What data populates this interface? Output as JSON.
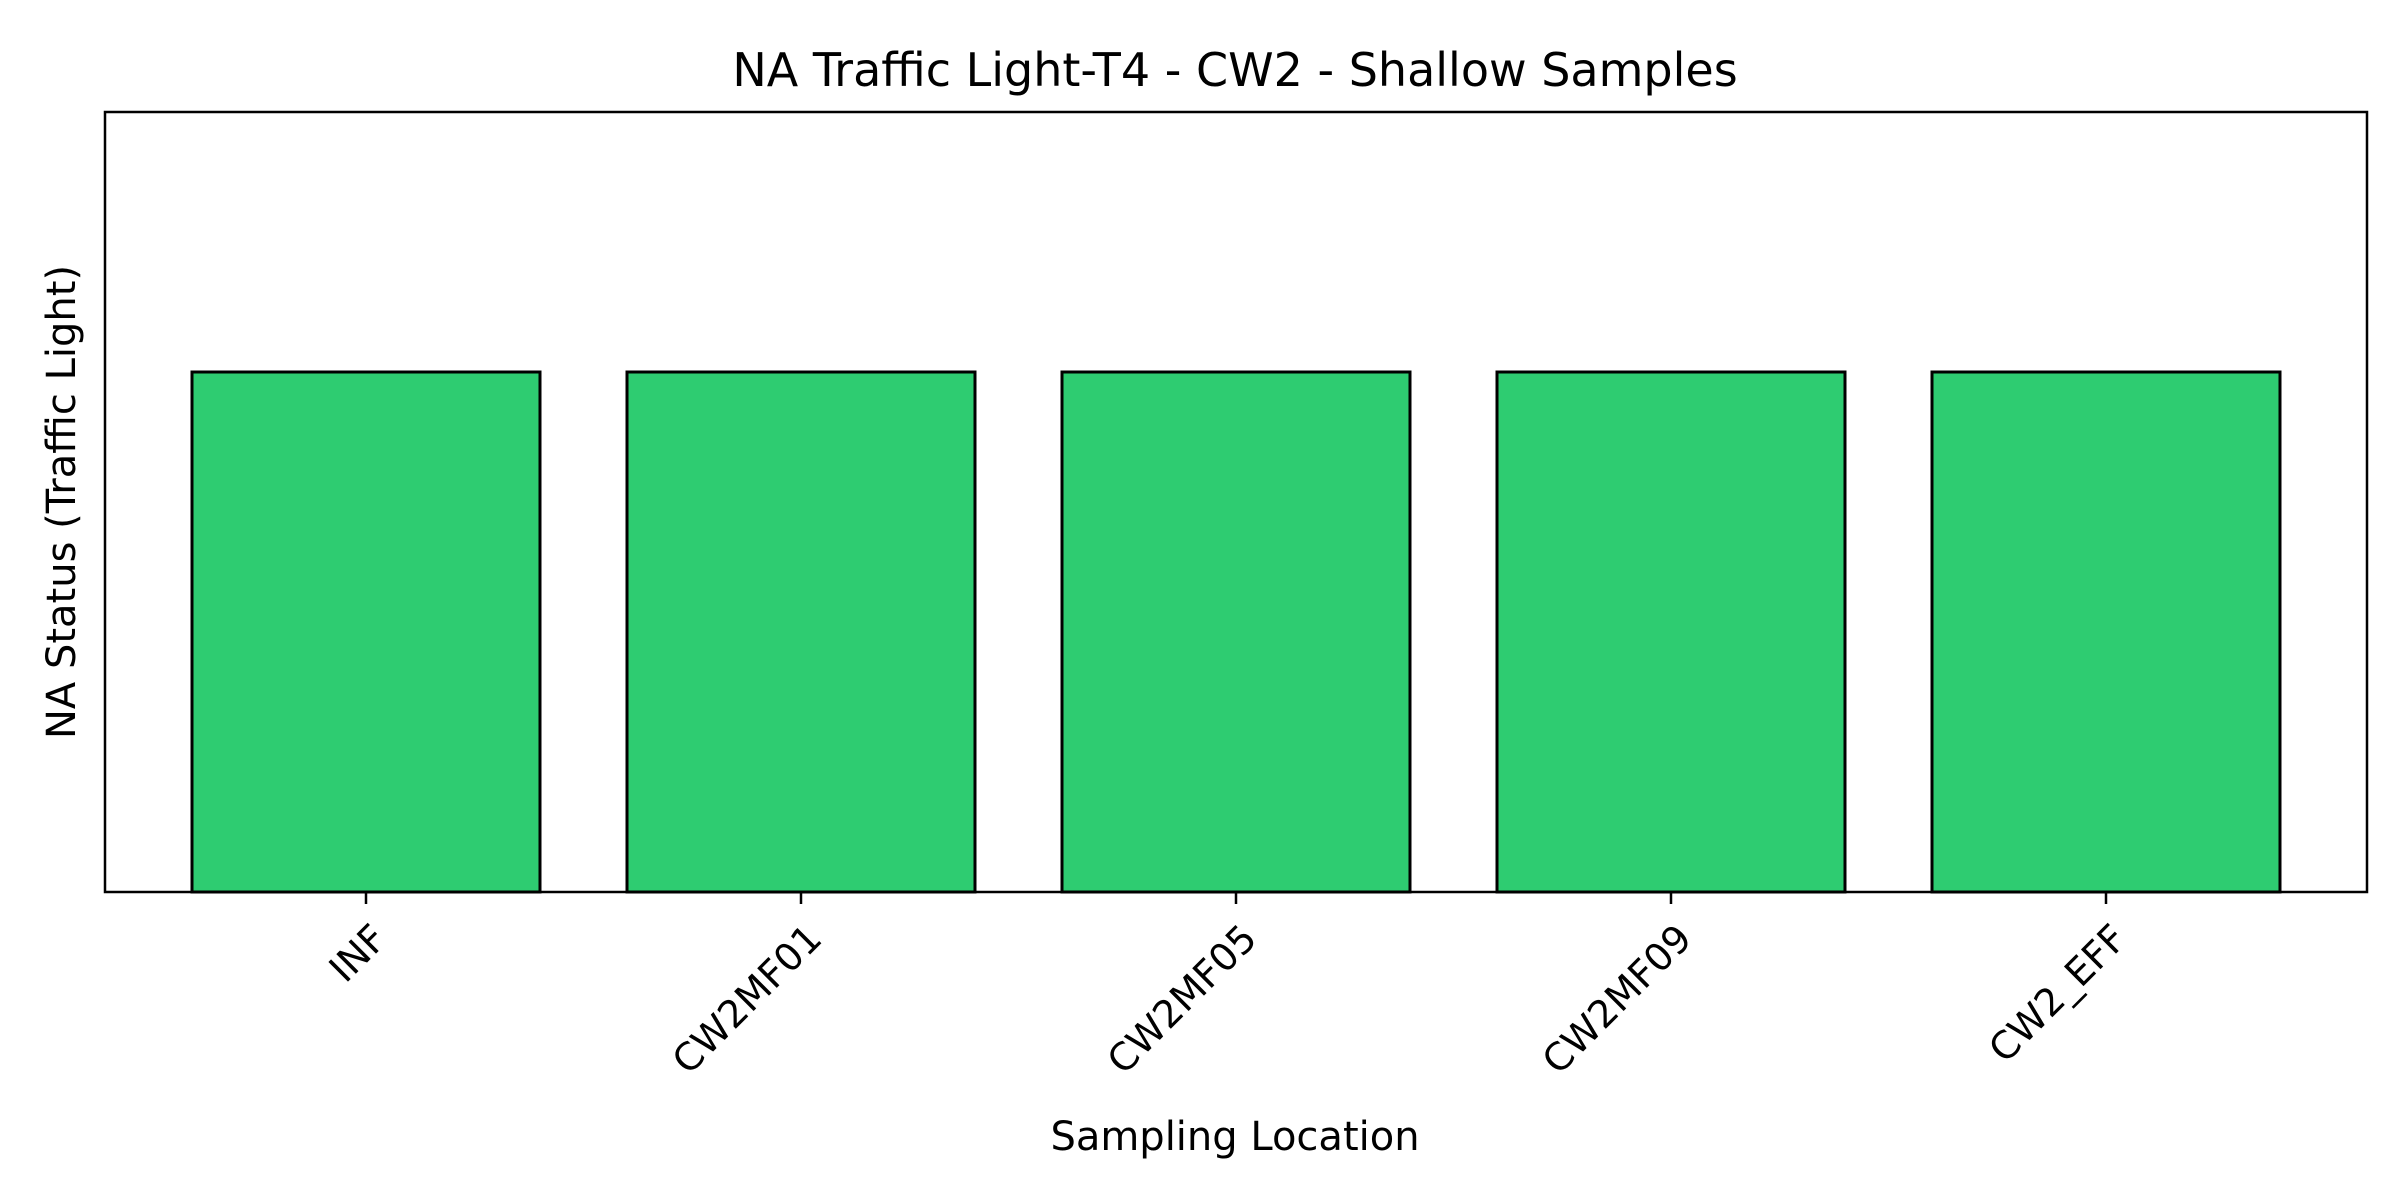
{
  "chart_data": {
    "type": "bar",
    "title": "NA Traffic Light-T4 - CW2 - Shallow Samples",
    "xlabel": "Sampling Location",
    "ylabel": "NA Status (Traffic Light)",
    "categories": [
      "INF",
      "CW2MF01",
      "CW2MF05",
      "CW2MF09",
      "CW2_EFF"
    ],
    "values": [
      1,
      1,
      1,
      1,
      1
    ],
    "ylim": [
      0,
      1.5
    ],
    "bar_color": "#2ecc71",
    "bar_edge_color": "#000000",
    "grid": false,
    "legend": "none"
  }
}
